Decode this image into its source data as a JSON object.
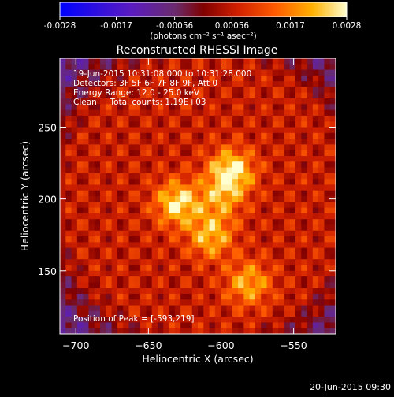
{
  "chart_data": {
    "type": "heatmap",
    "title": "Reconstructed RHESSI Image",
    "xlabel": "Heliocentric X (arcsec)",
    "ylabel": "Heliocentric Y (arcsec)",
    "xlim": [
      -711,
      -521
    ],
    "ylim": [
      106,
      298
    ],
    "x_ticks": [
      -700,
      -650,
      -600,
      -550
    ],
    "y_ticks": [
      150,
      200,
      250
    ],
    "colorbar": {
      "range": [
        -0.0028,
        0.0028
      ],
      "tick_values": [
        -0.0028,
        -0.0017,
        -0.00056,
        0.00056,
        0.0017,
        0.0028
      ],
      "tick_labels": [
        "-0.0028",
        "-0.0017",
        "-0.00056",
        "0.00056",
        "0.0017",
        "0.0028"
      ],
      "units_label": "(photons cm⁻² s⁻¹ asec⁻²)"
    },
    "annotations": [
      "19-Jun-2015 10:31:08.000 to 10:31:28.000",
      "Detectors: 3F 5F 6F 7F 8F 9F, Att 0",
      "Energy Range: 12.0 - 25.0 keV",
      "Clean     Total counts: 1.19E+03"
    ],
    "peak_label": "Position of Peak = [-593,219]",
    "peak": {
      "x": -593,
      "y": 219,
      "value": 0.0028
    },
    "sources": [
      {
        "x": -593,
        "y": 219,
        "value": 0.0028
      },
      {
        "x": -630,
        "y": 197,
        "value": 0.0026
      },
      {
        "x": -607,
        "y": 174,
        "value": 0.0022
      },
      {
        "x": -581,
        "y": 141,
        "value": 0.0021
      },
      {
        "x": -600,
        "y": 200,
        "value": 0.0017
      }
    ],
    "background_level": 0.0006
  },
  "footer": {
    "timestamp": "20-Jun-2015 09:30"
  },
  "colors": {
    "background": "#000000",
    "axes": "#ffffff"
  }
}
